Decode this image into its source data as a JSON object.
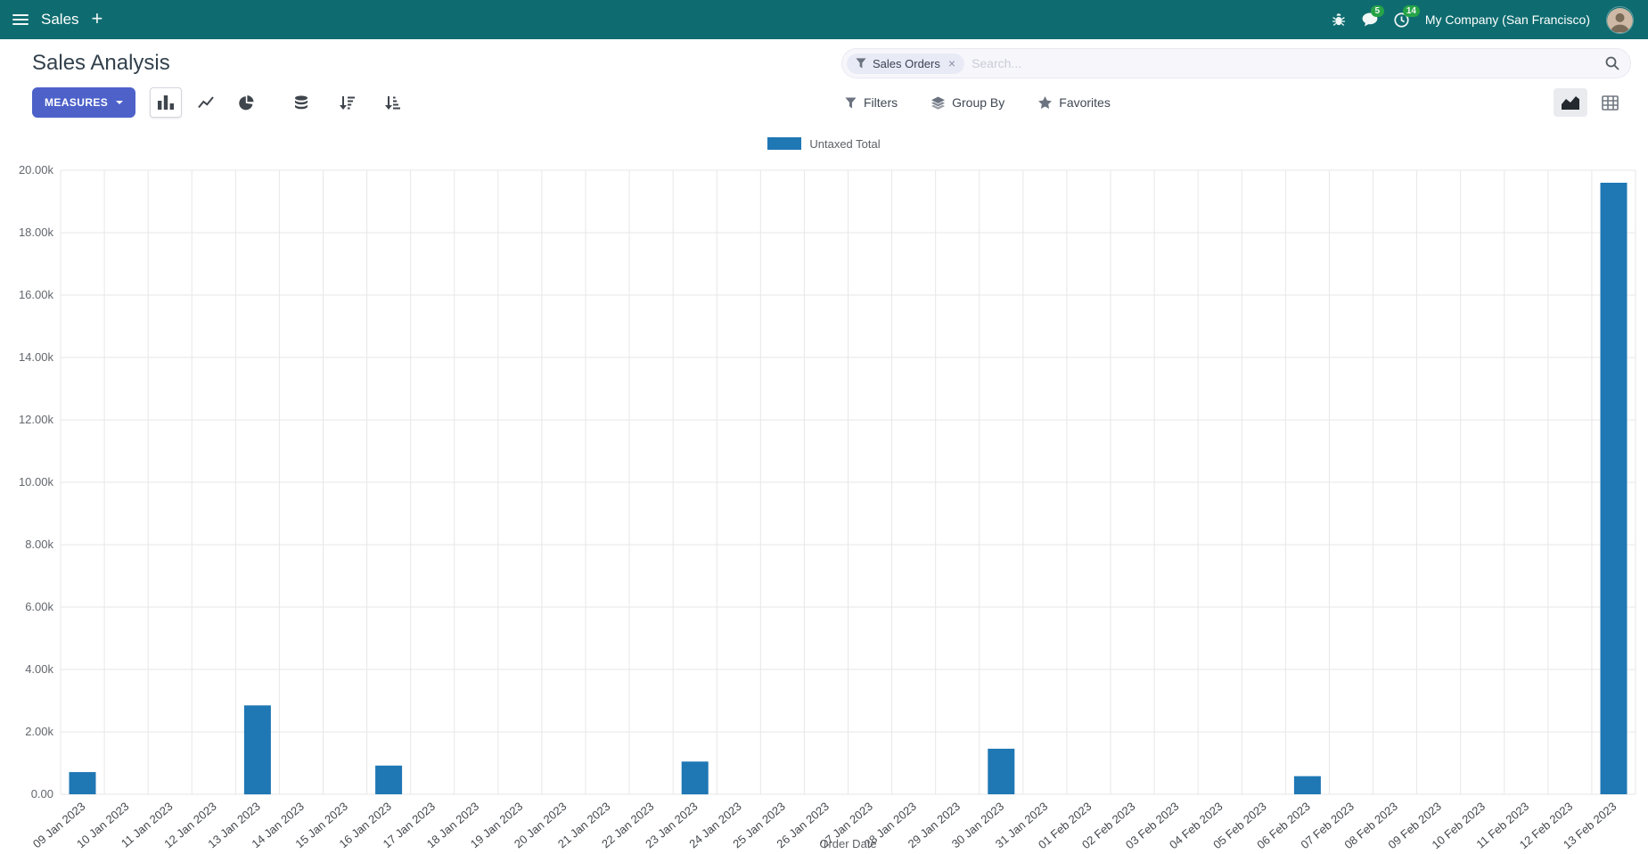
{
  "colors": {
    "navbar_bg": "#0e6c70",
    "primary_button": "#4d61c9",
    "badge": "#28a745",
    "bar": "#1f77b4"
  },
  "navbar": {
    "app_name": "Sales",
    "messages_badge": "5",
    "activities_badge": "14",
    "company": "My Company (San Francisco)"
  },
  "control_panel": {
    "title": "Sales Analysis",
    "measures_label": "MEASURES",
    "search": {
      "facet_label": "Sales Orders",
      "placeholder": "Search..."
    },
    "filters_label": "Filters",
    "group_by_label": "Group By",
    "favorites_label": "Favorites"
  },
  "icons": {
    "plus": "+",
    "close": "×"
  },
  "chart_data": {
    "type": "bar",
    "title": "",
    "xlabel": "Order Date",
    "ylabel": "",
    "ylim": [
      0,
      20000
    ],
    "ytick_labels": [
      "0.00",
      "2.00k",
      "4.00k",
      "6.00k",
      "8.00k",
      "10.00k",
      "12.00k",
      "14.00k",
      "16.00k",
      "18.00k",
      "20.00k"
    ],
    "grid": true,
    "legend_position": "top",
    "categories": [
      "09 Jan 2023",
      "10 Jan 2023",
      "11 Jan 2023",
      "12 Jan 2023",
      "13 Jan 2023",
      "14 Jan 2023",
      "15 Jan 2023",
      "16 Jan 2023",
      "17 Jan 2023",
      "18 Jan 2023",
      "19 Jan 2023",
      "20 Jan 2023",
      "21 Jan 2023",
      "22 Jan 2023",
      "23 Jan 2023",
      "24 Jan 2023",
      "25 Jan 2023",
      "26 Jan 2023",
      "27 Jan 2023",
      "28 Jan 2023",
      "29 Jan 2023",
      "30 Jan 2023",
      "31 Jan 2023",
      "01 Feb 2023",
      "02 Feb 2023",
      "03 Feb 2023",
      "04 Feb 2023",
      "05 Feb 2023",
      "06 Feb 2023",
      "07 Feb 2023",
      "08 Feb 2023",
      "09 Feb 2023",
      "10 Feb 2023",
      "11 Feb 2023",
      "12 Feb 2023",
      "13 Feb 2023"
    ],
    "series": [
      {
        "name": "Untaxed Total",
        "color": "#1f77b4",
        "values": [
          710,
          0,
          0,
          0,
          2850,
          0,
          0,
          920,
          0,
          0,
          0,
          0,
          0,
          0,
          1050,
          0,
          0,
          0,
          0,
          0,
          0,
          1460,
          0,
          0,
          0,
          0,
          0,
          0,
          580,
          0,
          0,
          0,
          0,
          0,
          0,
          19600
        ]
      }
    ]
  }
}
